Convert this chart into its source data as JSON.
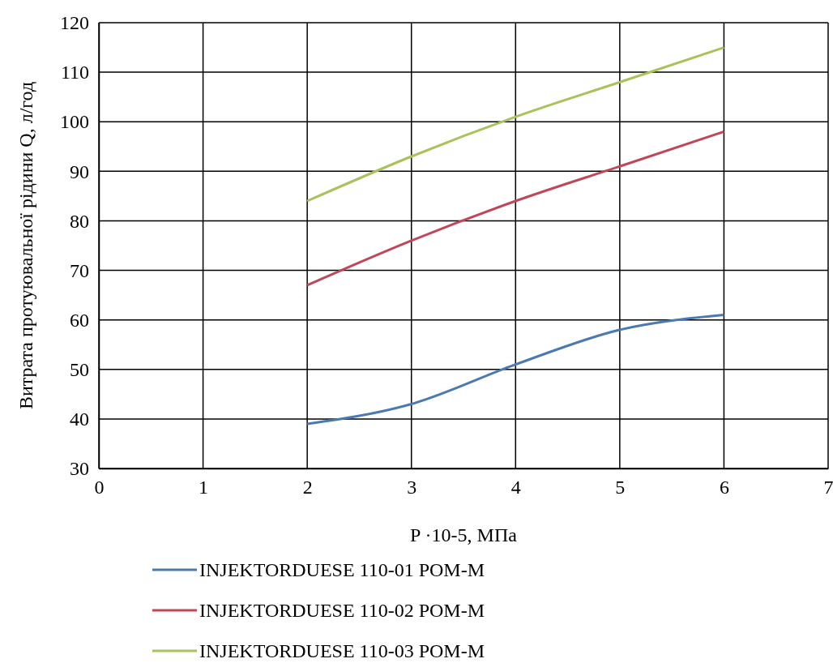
{
  "chart_data": {
    "type": "line",
    "xlabel": "P ·10-5, МПа",
    "ylabel": "Витрата протуювальної рідини Q, л/год",
    "x": [
      2,
      3,
      4,
      5,
      6
    ],
    "series": [
      {
        "name": "INJEKTORDUESE 110-01 POM-M",
        "color": "#4a7ab0",
        "values": [
          39,
          43,
          51,
          58,
          61
        ]
      },
      {
        "name": "INJEKTORDUESE 110-02 POM-M",
        "color": "#c0475a",
        "values": [
          67,
          76,
          84,
          91,
          98
        ]
      },
      {
        "name": "INJEKTORDUESE 110-03 POM-M",
        "color": "#a9c25a",
        "values": [
          84,
          93,
          101,
          108,
          115
        ]
      }
    ],
    "xlim": [
      0,
      7
    ],
    "xticks": [
      0,
      1,
      2,
      3,
      4,
      5,
      6,
      7
    ],
    "ylim": [
      30,
      120
    ],
    "yticks": [
      30,
      40,
      50,
      60,
      70,
      80,
      90,
      100,
      110,
      120
    ],
    "grid": true,
    "legend": "bottom",
    "marker": "none",
    "line_style": "solid"
  }
}
